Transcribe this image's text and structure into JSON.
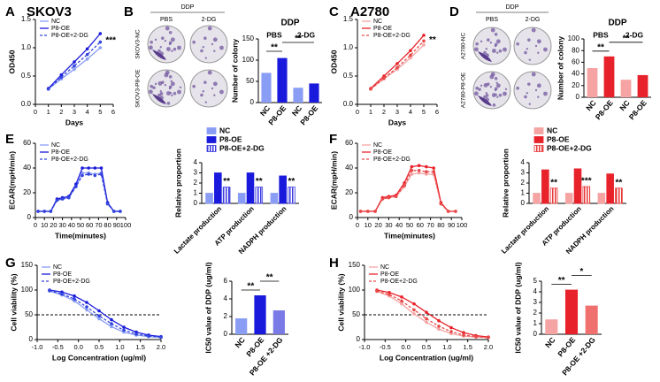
{
  "panel_labels": [
    "A",
    "B",
    "C",
    "D",
    "E",
    "F",
    "G",
    "H"
  ],
  "plate_panels": [
    {
      "title": "DDP",
      "columns": [
        "PBS",
        "2-DG"
      ],
      "rows": [
        "SKOV3-NC",
        "SKOV3-P8-OE"
      ]
    },
    {
      "title": "DDP",
      "columns": [
        "PBS",
        "2-DG"
      ],
      "rows": [
        "A2780-NC",
        "A2780-P8-OE"
      ]
    }
  ],
  "chart_data": [
    {
      "type": "line",
      "title": "SKOV3",
      "x_label": "Days",
      "y_label": "OD450",
      "x": [
        1,
        2,
        3,
        4,
        5
      ],
      "xlim": [
        0,
        6
      ],
      "xticks": [
        0,
        1,
        2,
        3,
        4,
        5,
        6
      ],
      "ylim": [
        0,
        1.5
      ],
      "yticks": [
        {
          "value": 0,
          "label": "0.0"
        },
        0.5,
        {
          "value": 1,
          "label": "1.0"
        },
        1.5
      ],
      "legend": "upper left",
      "annotation": "***",
      "series": [
        {
          "name": "NC",
          "color": "#8a9df5",
          "dashed": false,
          "values": [
            0.27,
            0.45,
            0.62,
            0.8,
            1.0
          ]
        },
        {
          "name": "P8-OE",
          "color": "#1a1adc",
          "dashed": false,
          "values": [
            0.28,
            0.52,
            0.75,
            0.98,
            1.25
          ]
        },
        {
          "name": "P8-OE+2-DG",
          "color": "#3344dd",
          "dashed": true,
          "values": [
            0.27,
            0.48,
            0.68,
            0.88,
            1.1
          ]
        }
      ]
    },
    {
      "type": "bar",
      "title": "DDP",
      "y_label": "Number of colony",
      "categories": [
        "NC",
        "P8-OE",
        "NC",
        "P8-OE"
      ],
      "groups": [
        "PBS",
        "2-DG"
      ],
      "values": [
        70,
        105,
        35,
        45
      ],
      "colors": [
        "#8a9df5",
        "#1a1adc",
        "#8a9df5",
        "#1a1adc"
      ],
      "ylim": [
        0,
        150
      ],
      "yticks": [
        0,
        50,
        100,
        150
      ],
      "annotations": [
        "**",
        "**"
      ]
    },
    {
      "type": "line",
      "title": "A2780",
      "x_label": "Days",
      "y_label": "OD450",
      "x": [
        1,
        2,
        3,
        4,
        5
      ],
      "xlim": [
        0,
        6
      ],
      "xticks": [
        0,
        1,
        2,
        3,
        4,
        5,
        6
      ],
      "ylim": [
        0,
        1.5
      ],
      "yticks": [
        {
          "value": 0,
          "label": "0.0"
        },
        0.5,
        {
          "value": 1,
          "label": "1.0"
        },
        1.5
      ],
      "legend": "upper left",
      "annotation": "**",
      "series": [
        {
          "name": "NC",
          "color": "#f5a3a3",
          "dashed": false,
          "values": [
            0.27,
            0.45,
            0.62,
            0.82,
            1.05
          ]
        },
        {
          "name": "P8-OE",
          "color": "#e8222a",
          "dashed": false,
          "values": [
            0.28,
            0.5,
            0.72,
            0.95,
            1.22
          ]
        },
        {
          "name": "P8-OE+2-DG",
          "color": "#e84a4a",
          "dashed": true,
          "values": [
            0.27,
            0.46,
            0.65,
            0.87,
            1.12
          ]
        }
      ]
    },
    {
      "type": "bar",
      "title": "DDP",
      "y_label": "Number of colony",
      "categories": [
        "NC",
        "P8-OE",
        "NC",
        "P8-OE"
      ],
      "groups": [
        "PBS",
        "2-DG"
      ],
      "values": [
        50,
        70,
        30,
        38
      ],
      "colors": [
        "#f5a3a3",
        "#e8222a",
        "#f5a3a3",
        "#e8222a"
      ],
      "ylim": [
        0,
        100
      ],
      "yticks": [
        0,
        20,
        40,
        60,
        80,
        100
      ],
      "annotations": [
        "**",
        "**"
      ]
    },
    {
      "type": "line",
      "x_label": "Time(minutes)",
      "y_label": "ECAR(mpH/min)",
      "x": [
        3,
        10,
        17,
        24,
        30,
        37,
        45,
        52,
        59,
        66,
        73,
        80,
        87,
        94
      ],
      "xlim": [
        0,
        100
      ],
      "xticks": [
        0,
        10,
        20,
        30,
        40,
        50,
        60,
        70,
        80,
        90,
        100
      ],
      "ylim": [
        0,
        60
      ],
      "yticks": [
        0,
        20,
        40,
        60
      ],
      "legend": "upper left",
      "series": [
        {
          "name": "NC",
          "color": "#8a9df5",
          "dashed": false,
          "values": [
            5,
            5,
            5,
            14,
            15,
            16,
            25,
            36,
            36,
            35,
            36,
            12,
            5,
            5
          ]
        },
        {
          "name": "P8-OE",
          "color": "#1a1adc",
          "dashed": false,
          "values": [
            5,
            5,
            5,
            15,
            16,
            17,
            27,
            40,
            40,
            40,
            40,
            12,
            5,
            5
          ]
        },
        {
          "name": "P8-OE+2-DG",
          "color": "#3344dd",
          "dashed": true,
          "values": [
            5,
            5,
            5,
            14,
            15,
            16,
            25,
            34,
            35,
            34,
            35,
            11,
            5,
            5
          ]
        }
      ]
    },
    {
      "type": "bar",
      "y_label": "Relative proportion",
      "categories": [
        "Lactate production",
        "ATP production",
        "NADPH production"
      ],
      "ylim": [
        0,
        4
      ],
      "yticks": [
        0,
        1,
        2,
        3,
        4
      ],
      "legend": "top",
      "annotations": [
        "**",
        "**",
        "**"
      ],
      "series": [
        {
          "name": "NC",
          "color": "#8a9df5",
          "hatched": false,
          "values": [
            1,
            1,
            1
          ]
        },
        {
          "name": "P8-OE",
          "color": "#1a1adc",
          "hatched": false,
          "values": [
            3.0,
            3.0,
            2.7
          ]
        },
        {
          "name": "P8-OE+2-DG",
          "color": "#3a3ae0",
          "hatched": true,
          "values": [
            1.6,
            1.6,
            1.6
          ]
        }
      ]
    },
    {
      "type": "line",
      "x_label": "Time(minutes)",
      "y_label": "ECAR(mpH/min)",
      "x": [
        3,
        10,
        17,
        24,
        30,
        37,
        45,
        52,
        59,
        66,
        73,
        80,
        87,
        94
      ],
      "xlim": [
        0,
        100
      ],
      "xticks": [
        0,
        10,
        20,
        30,
        40,
        50,
        60,
        70,
        80,
        90,
        100
      ],
      "ylim": [
        0,
        60
      ],
      "yticks": [
        0,
        20,
        40,
        60
      ],
      "legend": "upper left",
      "series": [
        {
          "name": "NC",
          "color": "#f5a3a3",
          "dashed": false,
          "values": [
            5,
            5,
            5,
            15,
            16,
            17,
            25,
            35,
            36,
            35,
            35,
            12,
            5,
            5
          ]
        },
        {
          "name": "P8-OE",
          "color": "#e8222a",
          "dashed": false,
          "values": [
            5,
            5,
            5,
            16,
            17,
            18,
            28,
            41,
            42,
            41,
            40,
            12,
            5,
            5
          ]
        },
        {
          "name": "P8-OE+2-DG",
          "color": "#e84a4a",
          "dashed": true,
          "values": [
            5,
            5,
            5,
            15,
            16,
            17,
            26,
            38,
            38,
            37,
            37,
            11,
            5,
            5
          ]
        }
      ]
    },
    {
      "type": "bar",
      "y_label": "Relative proportion",
      "categories": [
        "Lactate production",
        "ATP production",
        "NADPH production"
      ],
      "ylim": [
        0,
        4
      ],
      "yticks": [
        0,
        1,
        2,
        3,
        4
      ],
      "legend": "top",
      "annotations": [
        "**",
        "***",
        "**"
      ],
      "series": [
        {
          "name": "NC",
          "color": "#f5a3a3",
          "hatched": false,
          "values": [
            1,
            1,
            1
          ]
        },
        {
          "name": "P8-OE",
          "color": "#e8222a",
          "hatched": false,
          "values": [
            3.3,
            3.4,
            2.9
          ]
        },
        {
          "name": "P8-OE+2-DG",
          "color": "#e83a3a",
          "hatched": true,
          "values": [
            1.5,
            1.65,
            1.5
          ]
        }
      ]
    },
    {
      "type": "line",
      "x_label": "Log Concentration (ug/ml)",
      "y_label": "Cell viability (%)",
      "x": [
        -0.7,
        -0.4,
        -0.1,
        0.2,
        0.5,
        0.8,
        1.1,
        1.4,
        1.7,
        2.0
      ],
      "xlim": [
        -1,
        2
      ],
      "xticks": [
        {
          "value": -1,
          "label": "-1.0"
        },
        -0.5,
        {
          "value": 0,
          "label": "0.0"
        },
        0.5,
        {
          "value": 1,
          "label": "1.0"
        },
        1.5,
        {
          "value": 2,
          "label": "2.0"
        }
      ],
      "ylim": [
        0,
        150
      ],
      "yticks": [
        0,
        50,
        100,
        150
      ],
      "ref_line": 50,
      "legend": "upper left",
      "series": [
        {
          "name": "NC",
          "color": "#8a9df5",
          "dashed": false,
          "values": [
            98,
            90,
            78,
            60,
            42,
            26,
            15,
            9,
            6,
            4
          ]
        },
        {
          "name": "P8-OE",
          "color": "#1a1adc",
          "dashed": false,
          "values": [
            100,
            96,
            88,
            75,
            58,
            40,
            25,
            15,
            9,
            6
          ]
        },
        {
          "name": "P8-OE+2-DG",
          "color": "#3344dd",
          "dashed": true,
          "values": [
            99,
            92,
            82,
            66,
            48,
            32,
            19,
            11,
            7,
            5
          ]
        }
      ]
    },
    {
      "type": "bar",
      "y_label": "IC50 value of DDP (ug/ml)",
      "categories": [
        "NC",
        "P8-OE",
        "P8-OE +2-DG"
      ],
      "values": [
        1.8,
        4.4,
        2.7
      ],
      "colors": [
        "#8a9df5",
        "#1a1adc",
        "#7a7ae6"
      ],
      "ylim": [
        0,
        6
      ],
      "yticks": [
        0,
        2,
        4,
        6
      ],
      "annotations": [
        "**",
        "**"
      ]
    },
    {
      "type": "line",
      "x_label": "Log Concentration (ug/ml)",
      "y_label": "Cell viability (%)",
      "x": [
        -0.7,
        -0.4,
        -0.1,
        0.2,
        0.5,
        0.8,
        1.1,
        1.4,
        1.7,
        2.0
      ],
      "xlim": [
        -1,
        2
      ],
      "xticks": [
        {
          "value": -1,
          "label": "-1.0"
        },
        -0.5,
        {
          "value": 0,
          "label": "0.0"
        },
        0.5,
        {
          "value": 1,
          "label": "1.0"
        },
        1.5,
        {
          "value": 2,
          "label": "2.0"
        }
      ],
      "ylim": [
        0,
        150
      ],
      "yticks": [
        0,
        50,
        100,
        150
      ],
      "ref_line": 50,
      "legend": "upper left",
      "series": [
        {
          "name": "NC",
          "color": "#f5a3a3",
          "dashed": false,
          "values": [
            97,
            88,
            72,
            52,
            35,
            21,
            12,
            7,
            5,
            4
          ]
        },
        {
          "name": "P8-OE",
          "color": "#e8222a",
          "dashed": false,
          "values": [
            100,
            95,
            86,
            72,
            55,
            38,
            24,
            14,
            8,
            5
          ]
        },
        {
          "name": "P8-OE+2-DG",
          "color": "#e84a4a",
          "dashed": true,
          "values": [
            98,
            91,
            78,
            60,
            42,
            27,
            16,
            9,
            6,
            4
          ]
        }
      ]
    },
    {
      "type": "bar",
      "y_label": "IC50 value of DDP (ug/ml)",
      "categories": [
        "NC",
        "P8-OE",
        "P8-OE +2-DG"
      ],
      "values": [
        1.4,
        4.2,
        2.7
      ],
      "colors": [
        "#f5a3a3",
        "#e8222a",
        "#f07070"
      ],
      "ylim": [
        0,
        5
      ],
      "yticks": [
        0,
        1,
        2,
        3,
        4,
        5
      ],
      "annotations": [
        "**",
        "*"
      ]
    }
  ]
}
